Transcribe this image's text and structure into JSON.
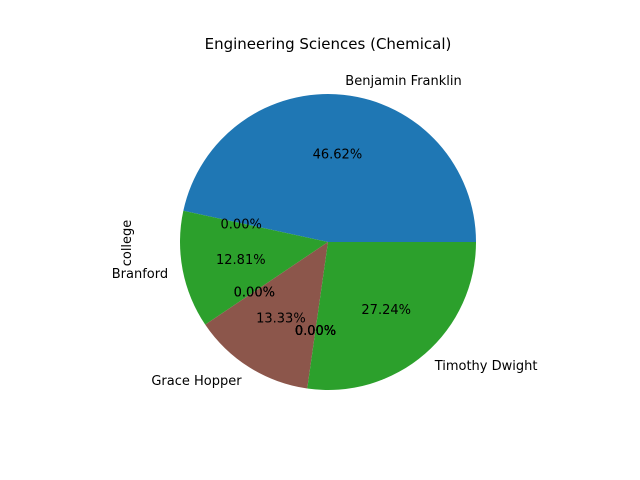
{
  "chart_data": {
    "type": "pie",
    "title": "Engineering Sciences (Chemical)",
    "ylabel": "college",
    "start_angle_deg": 0,
    "direction": "counterclockwise",
    "slices": [
      {
        "label": "Benjamin Franklin",
        "value": 46.62,
        "pct_label": "46.62%",
        "color": "#1f77b4"
      },
      {
        "label": "",
        "value": 0.0,
        "pct_label": "0.00%",
        "color": "#ff7f0e"
      },
      {
        "label": "Branford",
        "value": 12.81,
        "pct_label": "12.81%",
        "color": "#2ca02c"
      },
      {
        "label": "",
        "value": 0.0,
        "pct_label": "0.00%",
        "color": "#d62728"
      },
      {
        "label": "",
        "value": 0.0,
        "pct_label": "0.00%",
        "color": "#9467bd"
      },
      {
        "label": "Grace Hopper",
        "value": 13.33,
        "pct_label": "13.33%",
        "color": "#8c564b"
      },
      {
        "label": "",
        "value": 0.0,
        "pct_label": "0.00%",
        "color": "#e377c2"
      },
      {
        "label": "",
        "value": 0.0,
        "pct_label": "0.00%",
        "color": "#7f7f7f"
      },
      {
        "label": "",
        "value": 0.0,
        "pct_label": "0.00%",
        "color": "#bcbd22"
      },
      {
        "label": "",
        "value": 0.0,
        "pct_label": "0.00%",
        "color": "#17becf"
      },
      {
        "label": "",
        "value": 0.0,
        "pct_label": "0.00%",
        "color": "#1f77b4"
      },
      {
        "label": "Timothy Dwight",
        "value": 27.24,
        "pct_label": "27.24%",
        "color": "#2ca02c"
      }
    ]
  }
}
